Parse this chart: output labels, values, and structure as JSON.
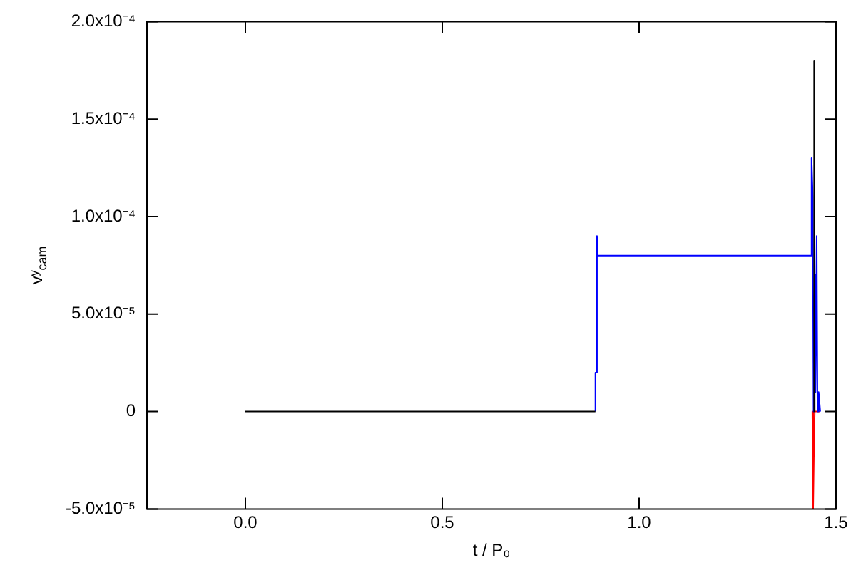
{
  "chart_data": {
    "type": "line",
    "xlabel": "t / P₀",
    "ylabel": "vʸ$_{cam}$",
    "xlim": [
      -0.25,
      1.5
    ],
    "xticks": [
      {
        "value": 0,
        "label": "0.0"
      },
      {
        "value": 0.5,
        "label": "0.5"
      },
      {
        "value": 1,
        "label": "1.0"
      },
      {
        "value": 1.5,
        "label": "1.5"
      }
    ],
    "ylim": [
      -5e-05,
      0.0002
    ],
    "yticks": [
      {
        "value": -5e-05,
        "label": "-5.0x10⁻⁵"
      },
      {
        "value": 0,
        "label": "0"
      },
      {
        "value": 5e-05,
        "label": "5.0x10⁻⁵"
      },
      {
        "value": 0.0001,
        "label": "1.0x10⁻⁴"
      },
      {
        "value": 0.00015,
        "label": "1.5x10⁻⁴"
      },
      {
        "value": 0.0002,
        "label": "2.0x10⁻⁴"
      }
    ],
    "grid": false,
    "legend": false,
    "marker": "none",
    "line_style": "solid",
    "series": [
      {
        "color": "#000000",
        "x": [
          0,
          0.889,
          1.44,
          1.443,
          1.444,
          1.445,
          1.446
        ],
        "values": [
          0,
          0,
          null,
          0,
          0.00018,
          0.00014,
          0
        ]
      },
      {
        "color": "#0000ff",
        "x": [
          0.889,
          0.889,
          0.893,
          0.893,
          0.895,
          0.9,
          1.43,
          1.435,
          1.438,
          1.441,
          1.443,
          1.446,
          1.448,
          1.451,
          1.453,
          1.456,
          1.46
        ],
        "values": [
          0,
          2e-05,
          2e-05,
          9e-05,
          8e-05,
          8e-05,
          8e-05,
          8e-05,
          0.00013,
          0.00011,
          0,
          7e-05,
          1e-05,
          9e-05,
          0,
          1e-05,
          0
        ]
      },
      {
        "color": "#ff0000",
        "x": [
          1.44,
          1.442,
          1.444,
          1.446,
          1.455,
          1.46
        ],
        "values": [
          0,
          -5e-05,
          -2e-05,
          0,
          0,
          0
        ]
      }
    ]
  }
}
